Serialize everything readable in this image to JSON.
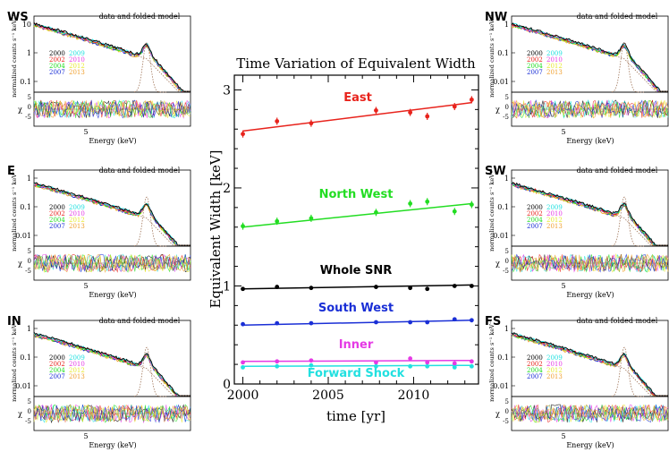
{
  "chart_data": [
    {
      "type": "line",
      "title": "Time Variation of Equivalent Width",
      "xlabel": "time [yr]",
      "ylabel": "Equivalent Width [keV]",
      "xlim": [
        1999.5,
        2013.8
      ],
      "ylim": [
        0,
        3.15
      ],
      "xticks": [
        2000,
        2005,
        2010
      ],
      "yticks": [
        0,
        1,
        2,
        3
      ],
      "x": [
        2000,
        2002,
        2004,
        2007.8,
        2009.8,
        2010.8,
        2012.4,
        2013.4
      ],
      "series": [
        {
          "name": "East",
          "color": "#e8231c",
          "values": [
            2.55,
            2.68,
            2.66,
            2.79,
            2.77,
            2.73,
            2.83,
            2.9
          ],
          "fit": [
            2.58,
            2.87
          ]
        },
        {
          "name": "North West",
          "color": "#22dd22",
          "values": [
            1.61,
            1.66,
            1.69,
            1.75,
            1.84,
            1.86,
            1.76,
            1.83
          ],
          "fit": [
            1.6,
            1.84
          ]
        },
        {
          "name": "Whole SNR",
          "color": "#000000",
          "values": [
            0.97,
            0.99,
            0.98,
            0.99,
            0.98,
            0.97,
            1.0,
            1.0
          ],
          "fit": [
            0.97,
            1.01
          ]
        },
        {
          "name": "South West",
          "color": "#1a2fd6",
          "values": [
            0.61,
            0.62,
            0.62,
            0.63,
            0.63,
            0.63,
            0.66,
            0.65
          ],
          "fit": [
            0.6,
            0.65
          ]
        },
        {
          "name": "Inner",
          "color": "#e53ae5",
          "values": [
            0.22,
            0.23,
            0.24,
            0.22,
            0.26,
            0.22,
            0.21,
            0.23
          ],
          "fit": [
            0.23,
            0.24
          ]
        },
        {
          "name": "Forward Shock",
          "color": "#22e0e0",
          "values": [
            0.17,
            0.18,
            0.19,
            0.18,
            0.18,
            0.18,
            0.17,
            0.18
          ],
          "fit": [
            0.18,
            0.19
          ]
        }
      ]
    }
  ],
  "panel_common": {
    "subtitle": "data and folded model",
    "ylabel": "normalized counts s⁻¹ keV⁻¹",
    "resid_label": "χ",
    "xlabel": "Energy (keV)",
    "xtick": "5",
    "resid_ticks": [
      "5",
      "0",
      "-5"
    ]
  },
  "panels": [
    {
      "id": "WS",
      "label": "WS",
      "yticks": [
        "10",
        "1",
        "0.1"
      ]
    },
    {
      "id": "E",
      "label": "E",
      "yticks": [
        "1",
        "0.1",
        "0.01"
      ]
    },
    {
      "id": "IN",
      "label": "IN",
      "yticks": [
        "1",
        "0.1",
        "0.01"
      ]
    },
    {
      "id": "NW",
      "label": "NW",
      "yticks": [
        "1",
        "0.1",
        "0.01"
      ]
    },
    {
      "id": "SW",
      "label": "SW",
      "yticks": [
        "1",
        "0.1",
        "0.01"
      ]
    },
    {
      "id": "FS",
      "label": "FS",
      "yticks": [
        "1",
        "0.1",
        "0.01"
      ]
    }
  ],
  "legend_years": [
    {
      "year": "2000",
      "color": "#000000"
    },
    {
      "year": "2009",
      "color": "#22e0e0"
    },
    {
      "year": "2002",
      "color": "#e8231c"
    },
    {
      "year": "2010",
      "color": "#e53ae5"
    },
    {
      "year": "2004",
      "color": "#22dd22"
    },
    {
      "year": "2012",
      "color": "#e8e830"
    },
    {
      "year": "2007",
      "color": "#1a2fd6"
    },
    {
      "year": "2013",
      "color": "#f0a030"
    }
  ]
}
